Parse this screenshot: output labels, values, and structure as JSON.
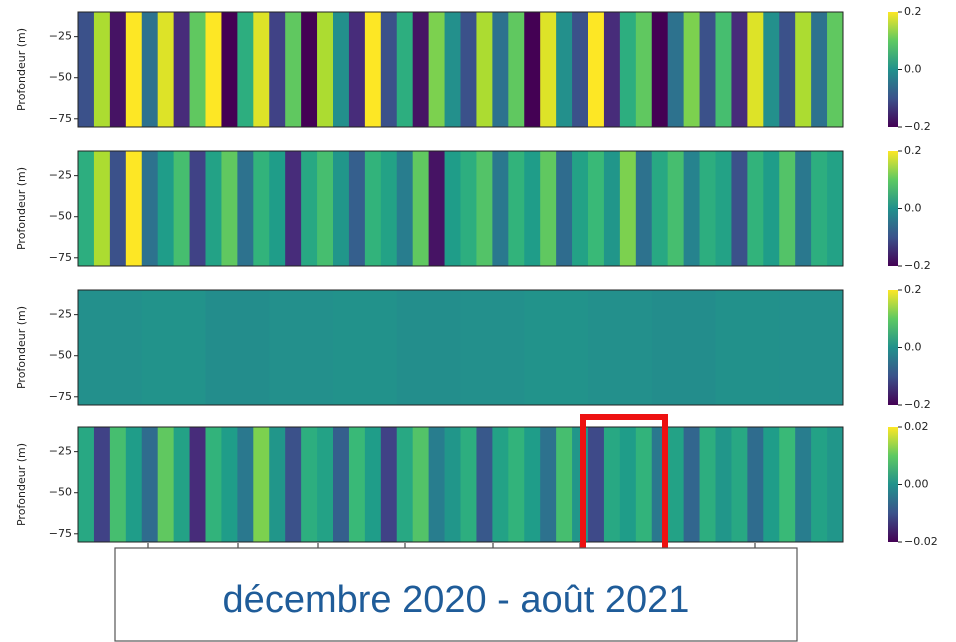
{
  "chart_data": [
    {
      "type": "heatmap",
      "ylabel": "Profondeur (m)",
      "ylim": [
        -80,
        -10
      ],
      "yticks": [
        {
          "value": -25,
          "label": "−25"
        },
        {
          "value": -50,
          "label": "−50"
        },
        {
          "value": -75,
          "label": "−75"
        }
      ],
      "clim": [
        -0.2,
        0.2
      ],
      "cticks": [
        {
          "value": 0.2,
          "label": "0.2"
        },
        {
          "value": 0,
          "label": "0.0"
        },
        {
          "value": -0.2,
          "label": "−0.2"
        }
      ],
      "values": [
        -0.1,
        0.15,
        -0.18,
        0.2,
        -0.05,
        0.18,
        -0.15,
        0.1,
        0.2,
        -0.2,
        0.05,
        0.18,
        -0.12,
        0.1,
        -0.2,
        0.15,
        0,
        -0.15,
        0.2,
        -0.1,
        0.05,
        -0.18,
        0.12,
        0,
        -0.1,
        0.15,
        -0.05,
        0.1,
        -0.2,
        0.18,
        0,
        -0.1,
        0.2,
        -0.15,
        0.05,
        0.1,
        -0.2,
        -0.05,
        0.12,
        -0.1,
        0.08,
        -0.15,
        0.18,
        0,
        -0.1,
        0.15,
        -0.05,
        0.1
      ]
    },
    {
      "type": "heatmap",
      "ylabel": "Profondeur (m)",
      "ylim": [
        -80,
        -10
      ],
      "yticks": [
        {
          "value": -25,
          "label": "−25"
        },
        {
          "value": -50,
          "label": "−50"
        },
        {
          "value": -75,
          "label": "−75"
        }
      ],
      "clim": [
        -0.2,
        0.2
      ],
      "cticks": [
        {
          "value": 0.2,
          "label": "0.2"
        },
        {
          "value": 0,
          "label": "0.0"
        },
        {
          "value": -0.2,
          "label": "−0.2"
        }
      ],
      "values": [
        0.05,
        0.15,
        -0.1,
        0.2,
        -0.05,
        0.02,
        0.08,
        -0.12,
        0.03,
        0.1,
        -0.05,
        0.06,
        0.02,
        -0.15,
        0.04,
        0.08,
        0.01,
        -0.08,
        0.06,
        0.03,
        -0.03,
        0.1,
        -0.18,
        0.02,
        0.05,
        0.09,
        -0.04,
        0.06,
        0.02,
        0.1,
        -0.06,
        0.03,
        0.07,
        0.01,
        0.12,
        -0.05,
        0.04,
        0.08,
        -0.02,
        0.05,
        0.03,
        -0.1,
        0.06,
        0.02,
        0.09,
        -0.04,
        0.05,
        0.03
      ]
    },
    {
      "type": "heatmap",
      "ylabel": "Profondeur (m)",
      "ylim": [
        -80,
        -10
      ],
      "yticks": [
        {
          "value": -25,
          "label": "−25"
        },
        {
          "value": -50,
          "label": "−50"
        },
        {
          "value": -75,
          "label": "−75"
        }
      ],
      "clim": [
        -0.2,
        0.2
      ],
      "cticks": [
        {
          "value": 0.2,
          "label": "0.2"
        },
        {
          "value": 0,
          "label": "0.0"
        },
        {
          "value": -0.2,
          "label": "−0.2"
        }
      ],
      "values": [
        0,
        0.005,
        -0.005,
        0,
        0.003,
        -0.003,
        0,
        0.004,
        0,
        -0.004,
        0.002,
        0
      ]
    },
    {
      "type": "heatmap",
      "ylabel": "Profondeur (m)",
      "ylim": [
        -80,
        -10
      ],
      "yticks": [
        {
          "value": -25,
          "label": "−25"
        },
        {
          "value": -50,
          "label": "−50"
        },
        {
          "value": -75,
          "label": "−75"
        }
      ],
      "clim": [
        -0.02,
        0.02
      ],
      "cticks": [
        {
          "value": 0.02,
          "label": "0.02"
        },
        {
          "value": 0,
          "label": "0.00"
        },
        {
          "value": -0.02,
          "label": "−0.02"
        }
      ],
      "values": [
        0.004,
        -0.012,
        0.008,
        0.002,
        -0.006,
        0.01,
        0.003,
        -0.015,
        0.006,
        0.002,
        -0.004,
        0.012,
        0.001,
        -0.01,
        0.005,
        0.003,
        -0.008,
        0.007,
        0.002,
        -0.012,
        0.004,
        0.009,
        -0.003,
        0.001,
        0.005,
        -0.009,
        0.003,
        0.006,
        0.002,
        -0.005,
        0.008,
        0.001,
        -0.011,
        0.004,
        0.002,
        0.006,
        -0.004,
        0.003,
        -0.007,
        0.005,
        0.001,
        0.004,
        -0.006,
        0.002,
        0.007,
        -0.003,
        0.003,
        0.001
      ]
    }
  ],
  "annotation": "décembre 2020 - août 2021"
}
